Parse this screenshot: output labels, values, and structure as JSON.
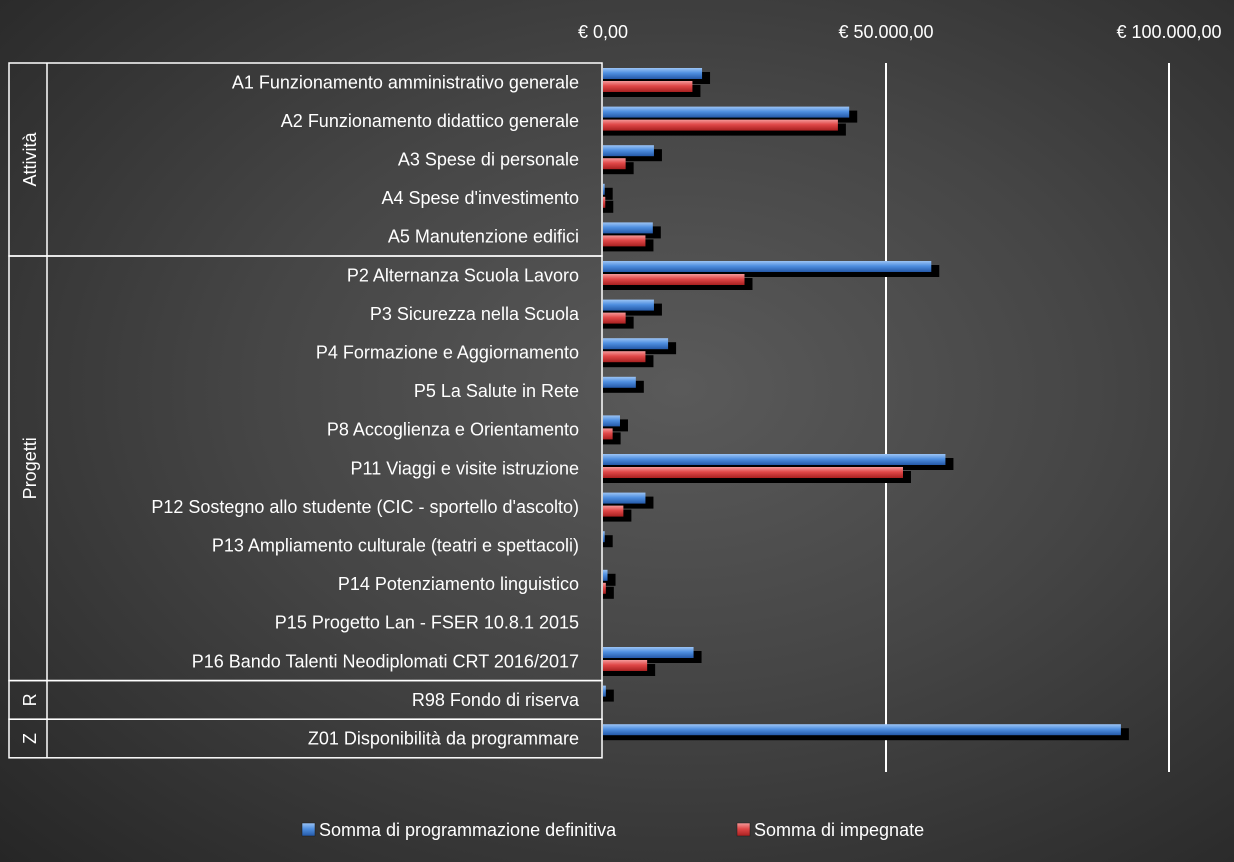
{
  "chart_data": {
    "type": "bar",
    "orientation": "horizontal",
    "xlim": [
      0,
      100000
    ],
    "x_ticks": [
      {
        "value": 0,
        "label": "€ 0,00"
      },
      {
        "value": 50000,
        "label": "€ 50.000,00"
      },
      {
        "value": 100000,
        "label": "€ 100.000,00"
      }
    ],
    "grid": true,
    "legend_position": "bottom",
    "groups": [
      {
        "label": "Attività",
        "categories": [
          "A1 Funzionamento amministrativo generale",
          "A2 Funzionamento didattico generale",
          "A3 Spese di personale",
          "A4 Spese d'investimento",
          "A5 Manutenzione edifici"
        ]
      },
      {
        "label": "Progetti",
        "categories": [
          "P2 Alternanza Scuola Lavoro",
          "P3 Sicurezza nella Scuola",
          "P4 Formazione e Aggiornamento",
          "P5 La Salute in Rete",
          "P8 Accoglienza e Orientamento",
          "P11 Viaggi e visite istruzione",
          "P12 Sostegno allo studente (CIC - sportello d'ascolto)",
          "P13 Ampliamento culturale (teatri e spettacoli)",
          "P14 Potenziamento linguistico",
          "P15 Progetto Lan - FSER 10.8.1 2015",
          "P16 Bando Talenti Neodiplomati CRT 2016/2017"
        ]
      },
      {
        "label": "R",
        "categories": [
          "R98 Fondo di riserva"
        ]
      },
      {
        "label": "Z",
        "categories": [
          "Z01 Disponibilità da programmare"
        ]
      }
    ],
    "categories": [
      "A1 Funzionamento amministrativo generale",
      "A2 Funzionamento didattico generale",
      "A3 Spese di personale",
      "A4 Spese d'investimento",
      "A5 Manutenzione edifici",
      "P2 Alternanza Scuola Lavoro",
      "P3 Sicurezza nella Scuola",
      "P4 Formazione e Aggiornamento",
      "P5 La Salute in Rete",
      "P8 Accoglienza e Orientamento",
      "P11 Viaggi e visite istruzione",
      "P12 Sostegno allo studente (CIC - sportello d'ascolto)",
      "P13 Ampliamento culturale (teatri e spettacoli)",
      "P14 Potenziamento linguistico",
      "P15 Progetto Lan - FSER 10.8.1 2015",
      "P16 Bando Talenti Neodiplomati CRT 2016/2017",
      "R98 Fondo di riserva",
      "Z01 Disponibilità da programmare"
    ],
    "series": [
      {
        "name": "Somma di programmazione definitiva",
        "color": "#4f8fe0",
        "values": [
          17500,
          43500,
          9000,
          300,
          8800,
          58000,
          9000,
          11500,
          5800,
          3000,
          60500,
          7500,
          300,
          800,
          0,
          16000,
          500,
          91500
        ]
      },
      {
        "name": "Somma di impegnate",
        "color": "#e04848",
        "values": [
          15800,
          41500,
          4000,
          400,
          7500,
          25000,
          4000,
          7500,
          0,
          1700,
          53000,
          3600,
          0,
          500,
          0,
          7800,
          0,
          0
        ]
      }
    ]
  }
}
